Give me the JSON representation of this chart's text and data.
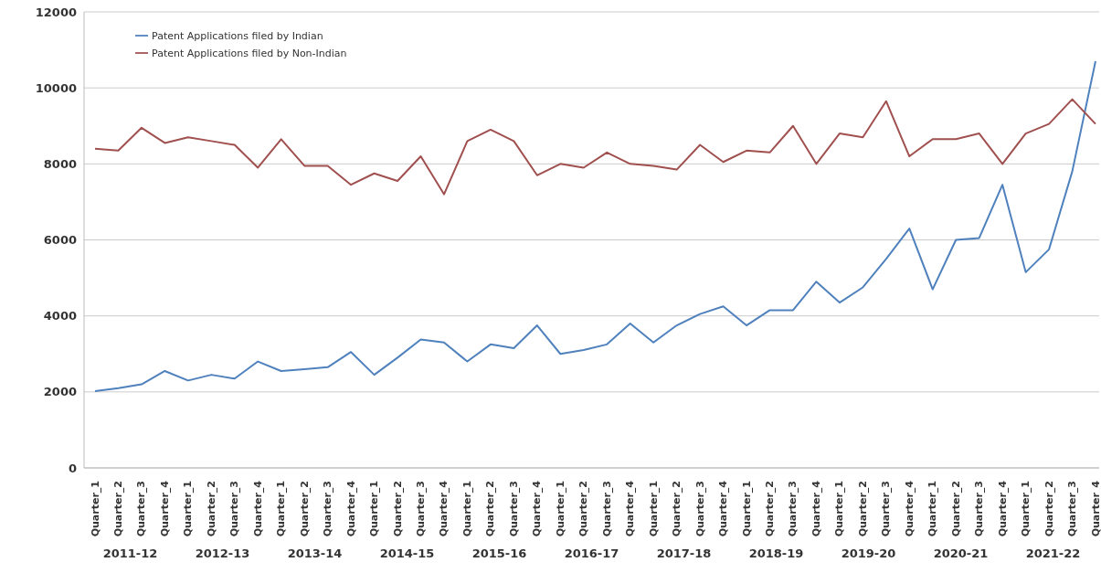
{
  "chart_data": {
    "type": "line",
    "categories": [
      "Quarter_1",
      "Quarter_2",
      "Quarter_3",
      "Quarter_4",
      "Quarter_1",
      "Quarter_2",
      "Quarter_3",
      "Quarter_4",
      "Quarter_1",
      "Quarter_2",
      "Quarter_3",
      "Quarter_4",
      "Quarter_1",
      "Quarter_2",
      "Quarter_3",
      "Quarter_4",
      "Quarter_1",
      "Quarter_2",
      "Quarter_3",
      "Quarter_4",
      "Quarter_1",
      "Quarter_2",
      "Quarter_3",
      "Quarter_4",
      "Quarter_1",
      "Quarter_2",
      "Quarter_3",
      "Quarter_4",
      "Quarter_1",
      "Quarter_2",
      "Quarter_3",
      "Quarter_4",
      "Quarter_1",
      "Quarter_2",
      "Quarter_3",
      "Quarter_4",
      "Quarter_1",
      "Quarter_2",
      "Quarter_3",
      "Quarter_4",
      "Quarter_1",
      "Quarter_2",
      "Quarter_3",
      "Quarter_4"
    ],
    "series": [
      {
        "name": "Patent Applications filed by Indian",
        "color": "#4f81bd",
        "values": [
          2020,
          2100,
          2200,
          2550,
          2300,
          2450,
          2350,
          2800,
          2550,
          2600,
          2650,
          3050,
          2450,
          2900,
          3380,
          3300,
          2800,
          3250,
          3150,
          3750,
          3000,
          3100,
          3250,
          3800,
          3300,
          3750,
          4050,
          4250,
          3750,
          4150,
          4150,
          4900,
          4350,
          4750,
          5500,
          6300,
          4700,
          6000,
          6050,
          7450,
          5150,
          5750,
          7800,
          10700
        ]
      },
      {
        "name": "Patent Applications filed by Non-Indian",
        "color": "#a0504f",
        "values": [
          8400,
          8350,
          8950,
          8550,
          8700,
          8600,
          8500,
          7900,
          8650,
          7950,
          7950,
          7450,
          7750,
          7550,
          8200,
          7200,
          8600,
          8900,
          8600,
          7700,
          8000,
          7900,
          8300,
          8000,
          7950,
          7850,
          8500,
          8050,
          8350,
          8300,
          9000,
          8000,
          8800,
          8700,
          9650,
          8200,
          8650,
          8650,
          8800,
          8000,
          8800,
          9050,
          9700,
          9050
        ]
      }
    ],
    "ylim": [
      0,
      12000
    ],
    "yticks": [
      0,
      2000,
      4000,
      6000,
      8000,
      10000,
      12000
    ],
    "grid": "y",
    "legend": "top left",
    "marker": "none",
    "annotations": [
      "2011-12",
      "2012-13",
      "2013-14",
      "2014-15",
      "2015-16",
      "2016-17",
      "2017-18",
      "2018-19",
      "2019-20",
      "2020-21",
      "2021-22"
    ]
  }
}
